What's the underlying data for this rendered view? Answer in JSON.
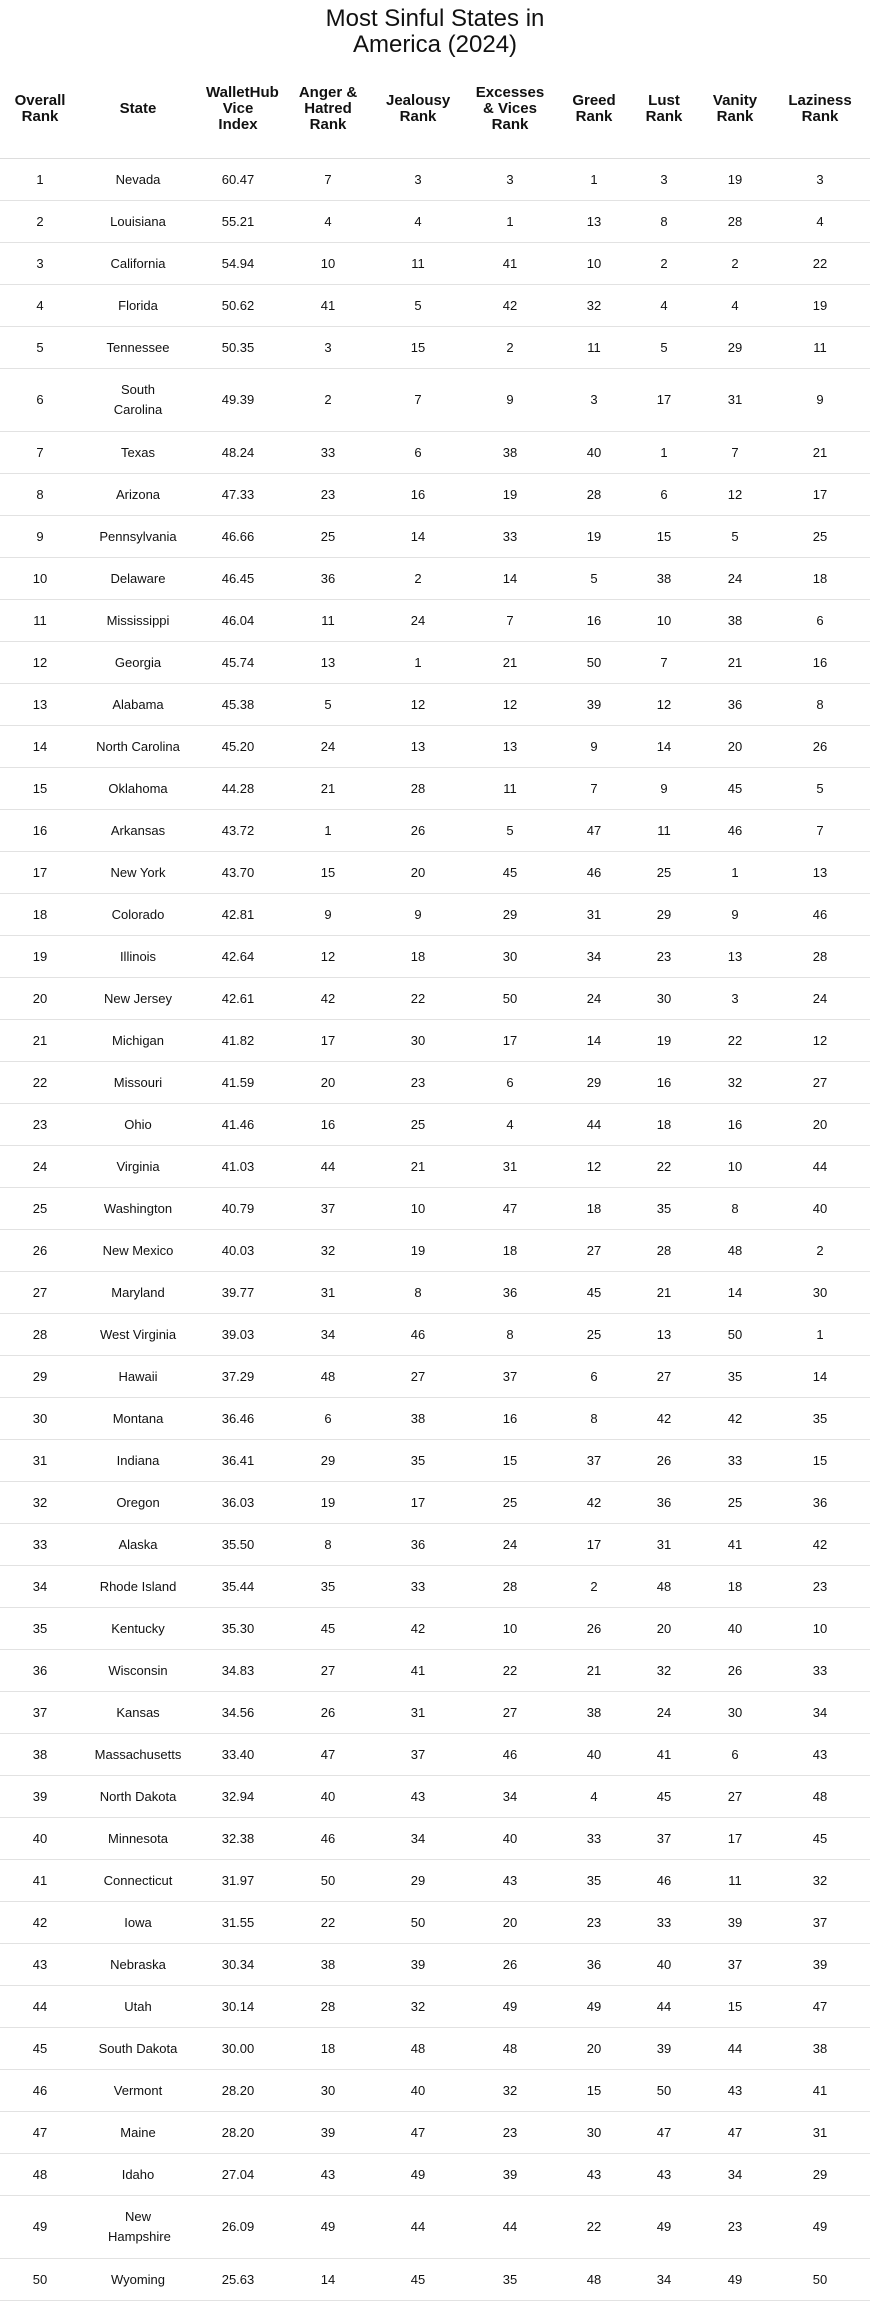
{
  "header": {
    "title": "Most Sinful States in America (2024)"
  },
  "table": {
    "columns": [
      "Overall Rank",
      "State",
      "WalletHub Vice Index",
      "Anger & Hatred Rank",
      "Jealousy Rank",
      "Excesses & Vices Rank",
      "Greed Rank",
      "Lust Rank",
      "Vanity Rank",
      "Laziness Rank"
    ],
    "rows": [
      [
        "1",
        "Nevada",
        "60.47",
        "7",
        "3",
        "3",
        "1",
        "3",
        "19",
        "3"
      ],
      [
        "2",
        "Louisiana",
        "55.21",
        "4",
        "4",
        "1",
        "13",
        "8",
        "28",
        "4"
      ],
      [
        "3",
        "California",
        "54.94",
        "10",
        "11",
        "41",
        "10",
        "2",
        "2",
        "22"
      ],
      [
        "4",
        "Florida",
        "50.62",
        "41",
        "5",
        "42",
        "32",
        "4",
        "4",
        "19"
      ],
      [
        "5",
        "Tennessee",
        "50.35",
        "3",
        "15",
        "2",
        "11",
        "5",
        "29",
        "11"
      ],
      [
        "6",
        "South Carolina",
        "49.39",
        "2",
        "7",
        "9",
        "3",
        "17",
        "31",
        "9"
      ],
      [
        "7",
        "Texas",
        "48.24",
        "33",
        "6",
        "38",
        "40",
        "1",
        "7",
        "21"
      ],
      [
        "8",
        "Arizona",
        "47.33",
        "23",
        "16",
        "19",
        "28",
        "6",
        "12",
        "17"
      ],
      [
        "9",
        "Pennsylvania",
        "46.66",
        "25",
        "14",
        "33",
        "19",
        "15",
        "5",
        "25"
      ],
      [
        "10",
        "Delaware",
        "46.45",
        "36",
        "2",
        "14",
        "5",
        "38",
        "24",
        "18"
      ],
      [
        "11",
        "Mississippi",
        "46.04",
        "11",
        "24",
        "7",
        "16",
        "10",
        "38",
        "6"
      ],
      [
        "12",
        "Georgia",
        "45.74",
        "13",
        "1",
        "21",
        "50",
        "7",
        "21",
        "16"
      ],
      [
        "13",
        "Alabama",
        "45.38",
        "5",
        "12",
        "12",
        "39",
        "12",
        "36",
        "8"
      ],
      [
        "14",
        "North Carolina",
        "45.20",
        "24",
        "13",
        "13",
        "9",
        "14",
        "20",
        "26"
      ],
      [
        "15",
        "Oklahoma",
        "44.28",
        "21",
        "28",
        "11",
        "7",
        "9",
        "45",
        "5"
      ],
      [
        "16",
        "Arkansas",
        "43.72",
        "1",
        "26",
        "5",
        "47",
        "11",
        "46",
        "7"
      ],
      [
        "17",
        "New York",
        "43.70",
        "15",
        "20",
        "45",
        "46",
        "25",
        "1",
        "13"
      ],
      [
        "18",
        "Colorado",
        "42.81",
        "9",
        "9",
        "29",
        "31",
        "29",
        "9",
        "46"
      ],
      [
        "19",
        "Illinois",
        "42.64",
        "12",
        "18",
        "30",
        "34",
        "23",
        "13",
        "28"
      ],
      [
        "20",
        "New Jersey",
        "42.61",
        "42",
        "22",
        "50",
        "24",
        "30",
        "3",
        "24"
      ],
      [
        "21",
        "Michigan",
        "41.82",
        "17",
        "30",
        "17",
        "14",
        "19",
        "22",
        "12"
      ],
      [
        "22",
        "Missouri",
        "41.59",
        "20",
        "23",
        "6",
        "29",
        "16",
        "32",
        "27"
      ],
      [
        "23",
        "Ohio",
        "41.46",
        "16",
        "25",
        "4",
        "44",
        "18",
        "16",
        "20"
      ],
      [
        "24",
        "Virginia",
        "41.03",
        "44",
        "21",
        "31",
        "12",
        "22",
        "10",
        "44"
      ],
      [
        "25",
        "Washington",
        "40.79",
        "37",
        "10",
        "47",
        "18",
        "35",
        "8",
        "40"
      ],
      [
        "26",
        "New Mexico",
        "40.03",
        "32",
        "19",
        "18",
        "27",
        "28",
        "48",
        "2"
      ],
      [
        "27",
        "Maryland",
        "39.77",
        "31",
        "8",
        "36",
        "45",
        "21",
        "14",
        "30"
      ],
      [
        "28",
        "West Virginia",
        "39.03",
        "34",
        "46",
        "8",
        "25",
        "13",
        "50",
        "1"
      ],
      [
        "29",
        "Hawaii",
        "37.29",
        "48",
        "27",
        "37",
        "6",
        "27",
        "35",
        "14"
      ],
      [
        "30",
        "Montana",
        "36.46",
        "6",
        "38",
        "16",
        "8",
        "42",
        "42",
        "35"
      ],
      [
        "31",
        "Indiana",
        "36.41",
        "29",
        "35",
        "15",
        "37",
        "26",
        "33",
        "15"
      ],
      [
        "32",
        "Oregon",
        "36.03",
        "19",
        "17",
        "25",
        "42",
        "36",
        "25",
        "36"
      ],
      [
        "33",
        "Alaska",
        "35.50",
        "8",
        "36",
        "24",
        "17",
        "31",
        "41",
        "42"
      ],
      [
        "34",
        "Rhode Island",
        "35.44",
        "35",
        "33",
        "28",
        "2",
        "48",
        "18",
        "23"
      ],
      [
        "35",
        "Kentucky",
        "35.30",
        "45",
        "42",
        "10",
        "26",
        "20",
        "40",
        "10"
      ],
      [
        "36",
        "Wisconsin",
        "34.83",
        "27",
        "41",
        "22",
        "21",
        "32",
        "26",
        "33"
      ],
      [
        "37",
        "Kansas",
        "34.56",
        "26",
        "31",
        "27",
        "38",
        "24",
        "30",
        "34"
      ],
      [
        "38",
        "Massachusetts",
        "33.40",
        "47",
        "37",
        "46",
        "40",
        "41",
        "6",
        "43"
      ],
      [
        "39",
        "North Dakota",
        "32.94",
        "40",
        "43",
        "34",
        "4",
        "45",
        "27",
        "48"
      ],
      [
        "40",
        "Minnesota",
        "32.38",
        "46",
        "34",
        "40",
        "33",
        "37",
        "17",
        "45"
      ],
      [
        "41",
        "Connecticut",
        "31.97",
        "50",
        "29",
        "43",
        "35",
        "46",
        "11",
        "32"
      ],
      [
        "42",
        "Iowa",
        "31.55",
        "22",
        "50",
        "20",
        "23",
        "33",
        "39",
        "37"
      ],
      [
        "43",
        "Nebraska",
        "30.34",
        "38",
        "39",
        "26",
        "36",
        "40",
        "37",
        "39"
      ],
      [
        "44",
        "Utah",
        "30.14",
        "28",
        "32",
        "49",
        "49",
        "44",
        "15",
        "47"
      ],
      [
        "45",
        "South Dakota",
        "30.00",
        "18",
        "48",
        "48",
        "20",
        "39",
        "44",
        "38"
      ],
      [
        "46",
        "Vermont",
        "28.20",
        "30",
        "40",
        "32",
        "15",
        "50",
        "43",
        "41"
      ],
      [
        "47",
        "Maine",
        "28.20",
        "39",
        "47",
        "23",
        "30",
        "47",
        "47",
        "31"
      ],
      [
        "48",
        "Idaho",
        "27.04",
        "43",
        "49",
        "39",
        "43",
        "43",
        "34",
        "29"
      ],
      [
        "49",
        "New Hampshire",
        "26.09",
        "49",
        "44",
        "44",
        "22",
        "49",
        "23",
        "49"
      ],
      [
        "50",
        "Wyoming",
        "25.63",
        "14",
        "45",
        "35",
        "48",
        "34",
        "49",
        "50"
      ]
    ]
  }
}
